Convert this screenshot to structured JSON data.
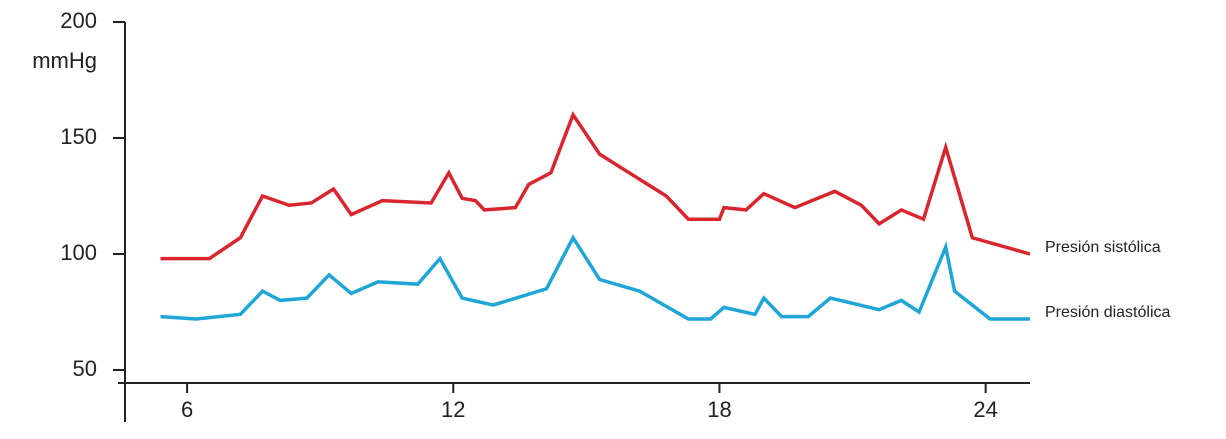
{
  "chart_data": {
    "type": "line",
    "y_label": "mmHg",
    "xlim": [
      4.6,
      25
    ],
    "ylim": [
      45,
      200
    ],
    "xticks": [
      6,
      12,
      18,
      24
    ],
    "yticks": [
      50,
      100,
      150,
      200
    ],
    "series": [
      {
        "name": "Presión sistólica",
        "color": "#d9262e",
        "x": [
          5.4,
          6.5,
          7.2,
          7.7,
          8.3,
          8.8,
          9.3,
          9.7,
          10.4,
          11.5,
          11.9,
          12.2,
          12.5,
          12.7,
          13.4,
          13.7,
          14.2,
          14.7,
          15.3,
          16.8,
          17.3,
          18.0,
          18.1,
          18.6,
          19.0,
          19.7,
          20.6,
          21.2,
          21.6,
          22.1,
          22.6,
          23.1,
          23.7,
          25.0
        ],
        "values": [
          98,
          98,
          107,
          125,
          121,
          122,
          128,
          117,
          123,
          122,
          135,
          124,
          123,
          119,
          120,
          130,
          135,
          160,
          143,
          125,
          115,
          115,
          120,
          119,
          126,
          120,
          127,
          121,
          113,
          119,
          115,
          146,
          107,
          100
        ]
      },
      {
        "name": "Presión diastólica",
        "color": "#1fa6d8",
        "x": [
          5.4,
          6.2,
          7.2,
          7.7,
          8.1,
          8.7,
          9.2,
          9.7,
          10.3,
          11.2,
          11.7,
          12.2,
          12.9,
          14.1,
          14.7,
          15.3,
          16.2,
          17.3,
          17.8,
          18.1,
          18.8,
          19.0,
          19.4,
          20.0,
          20.5,
          21.6,
          22.1,
          22.5,
          23.1,
          23.3,
          24.1,
          25.0
        ],
        "values": [
          73,
          72,
          74,
          84,
          80,
          81,
          91,
          83,
          88,
          87,
          98,
          81,
          78,
          85,
          107,
          89,
          84,
          72,
          72,
          77,
          74,
          81,
          73,
          73,
          81,
          76,
          80,
          75,
          103,
          84,
          72,
          72
        ]
      }
    ]
  }
}
